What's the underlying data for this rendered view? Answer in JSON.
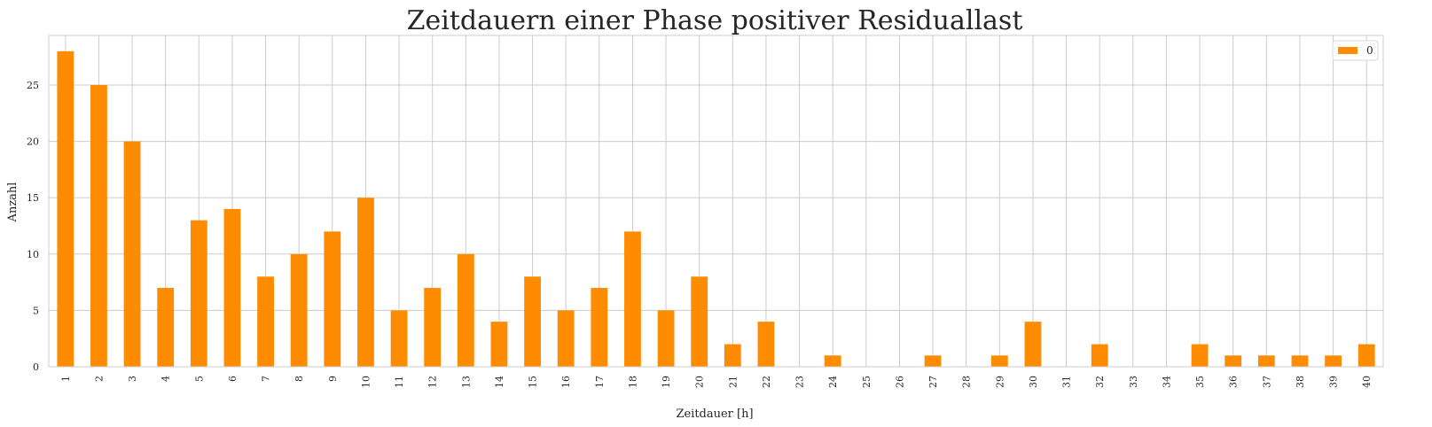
{
  "chart_data": {
    "type": "bar",
    "title": "Zeitdauern einer Phase positiver Residuallast",
    "xlabel": "Zeitdauer [h]",
    "ylabel": "Anzahl",
    "categories": [
      "1",
      "2",
      "3",
      "4",
      "5",
      "6",
      "7",
      "8",
      "9",
      "10",
      "11",
      "12",
      "13",
      "14",
      "15",
      "16",
      "17",
      "18",
      "19",
      "20",
      "21",
      "22",
      "23",
      "24",
      "25",
      "26",
      "27",
      "28",
      "29",
      "30",
      "31",
      "32",
      "33",
      "34",
      "35",
      "36",
      "37",
      "38",
      "39",
      "40"
    ],
    "series": [
      {
        "name": "0",
        "color": "#ff8c00",
        "values": [
          28,
          25,
          20,
          7,
          13,
          14,
          8,
          10,
          12,
          15,
          5,
          7,
          10,
          4,
          8,
          5,
          7,
          12,
          5,
          8,
          2,
          4,
          0,
          1,
          0,
          0,
          1,
          0,
          1,
          4,
          0,
          2,
          0,
          0,
          2,
          1,
          1,
          1,
          1,
          2
        ]
      }
    ],
    "ylim": [
      0,
      29.4
    ],
    "yticks": [
      0,
      5,
      10,
      15,
      20,
      25
    ],
    "grid": true,
    "legend_position": "top-right"
  }
}
